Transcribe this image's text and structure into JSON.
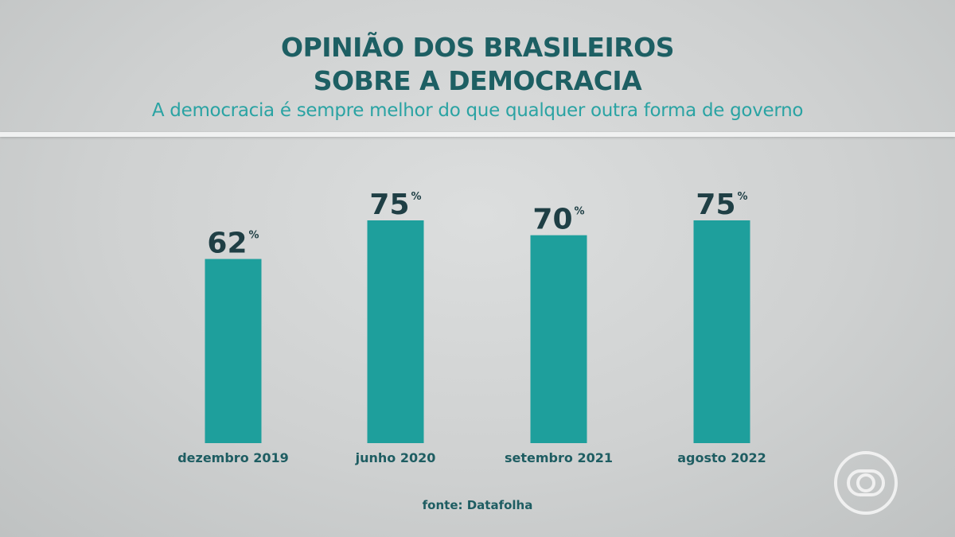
{
  "header": {
    "title_line1": "OPINIÃO DOS BRASILEIROS",
    "title_line2": "SOBRE A DEMOCRACIA",
    "subtitle": "A democracia é sempre melhor do que qualquer outra forma de governo"
  },
  "chart_data": {
    "type": "bar",
    "title": "OPINIÃO DOS BRASILEIROS SOBRE A DEMOCRACIA",
    "subtitle": "A democracia é sempre melhor do que qualquer outra forma de governo",
    "categories": [
      "dezembro 2019",
      "junho 2020",
      "setembro 2021",
      "agosto 2022"
    ],
    "values": [
      62,
      75,
      70,
      75
    ],
    "value_labels": [
      "62",
      "75",
      "70",
      "75"
    ],
    "unit": "%",
    "ylim": [
      0,
      75
    ],
    "grid": false,
    "legend": "none",
    "bar_color": "#1e9f9c"
  },
  "footer": {
    "source": "fonte: Datafolha"
  },
  "logo": {
    "icon": "globo-logo-icon"
  }
}
